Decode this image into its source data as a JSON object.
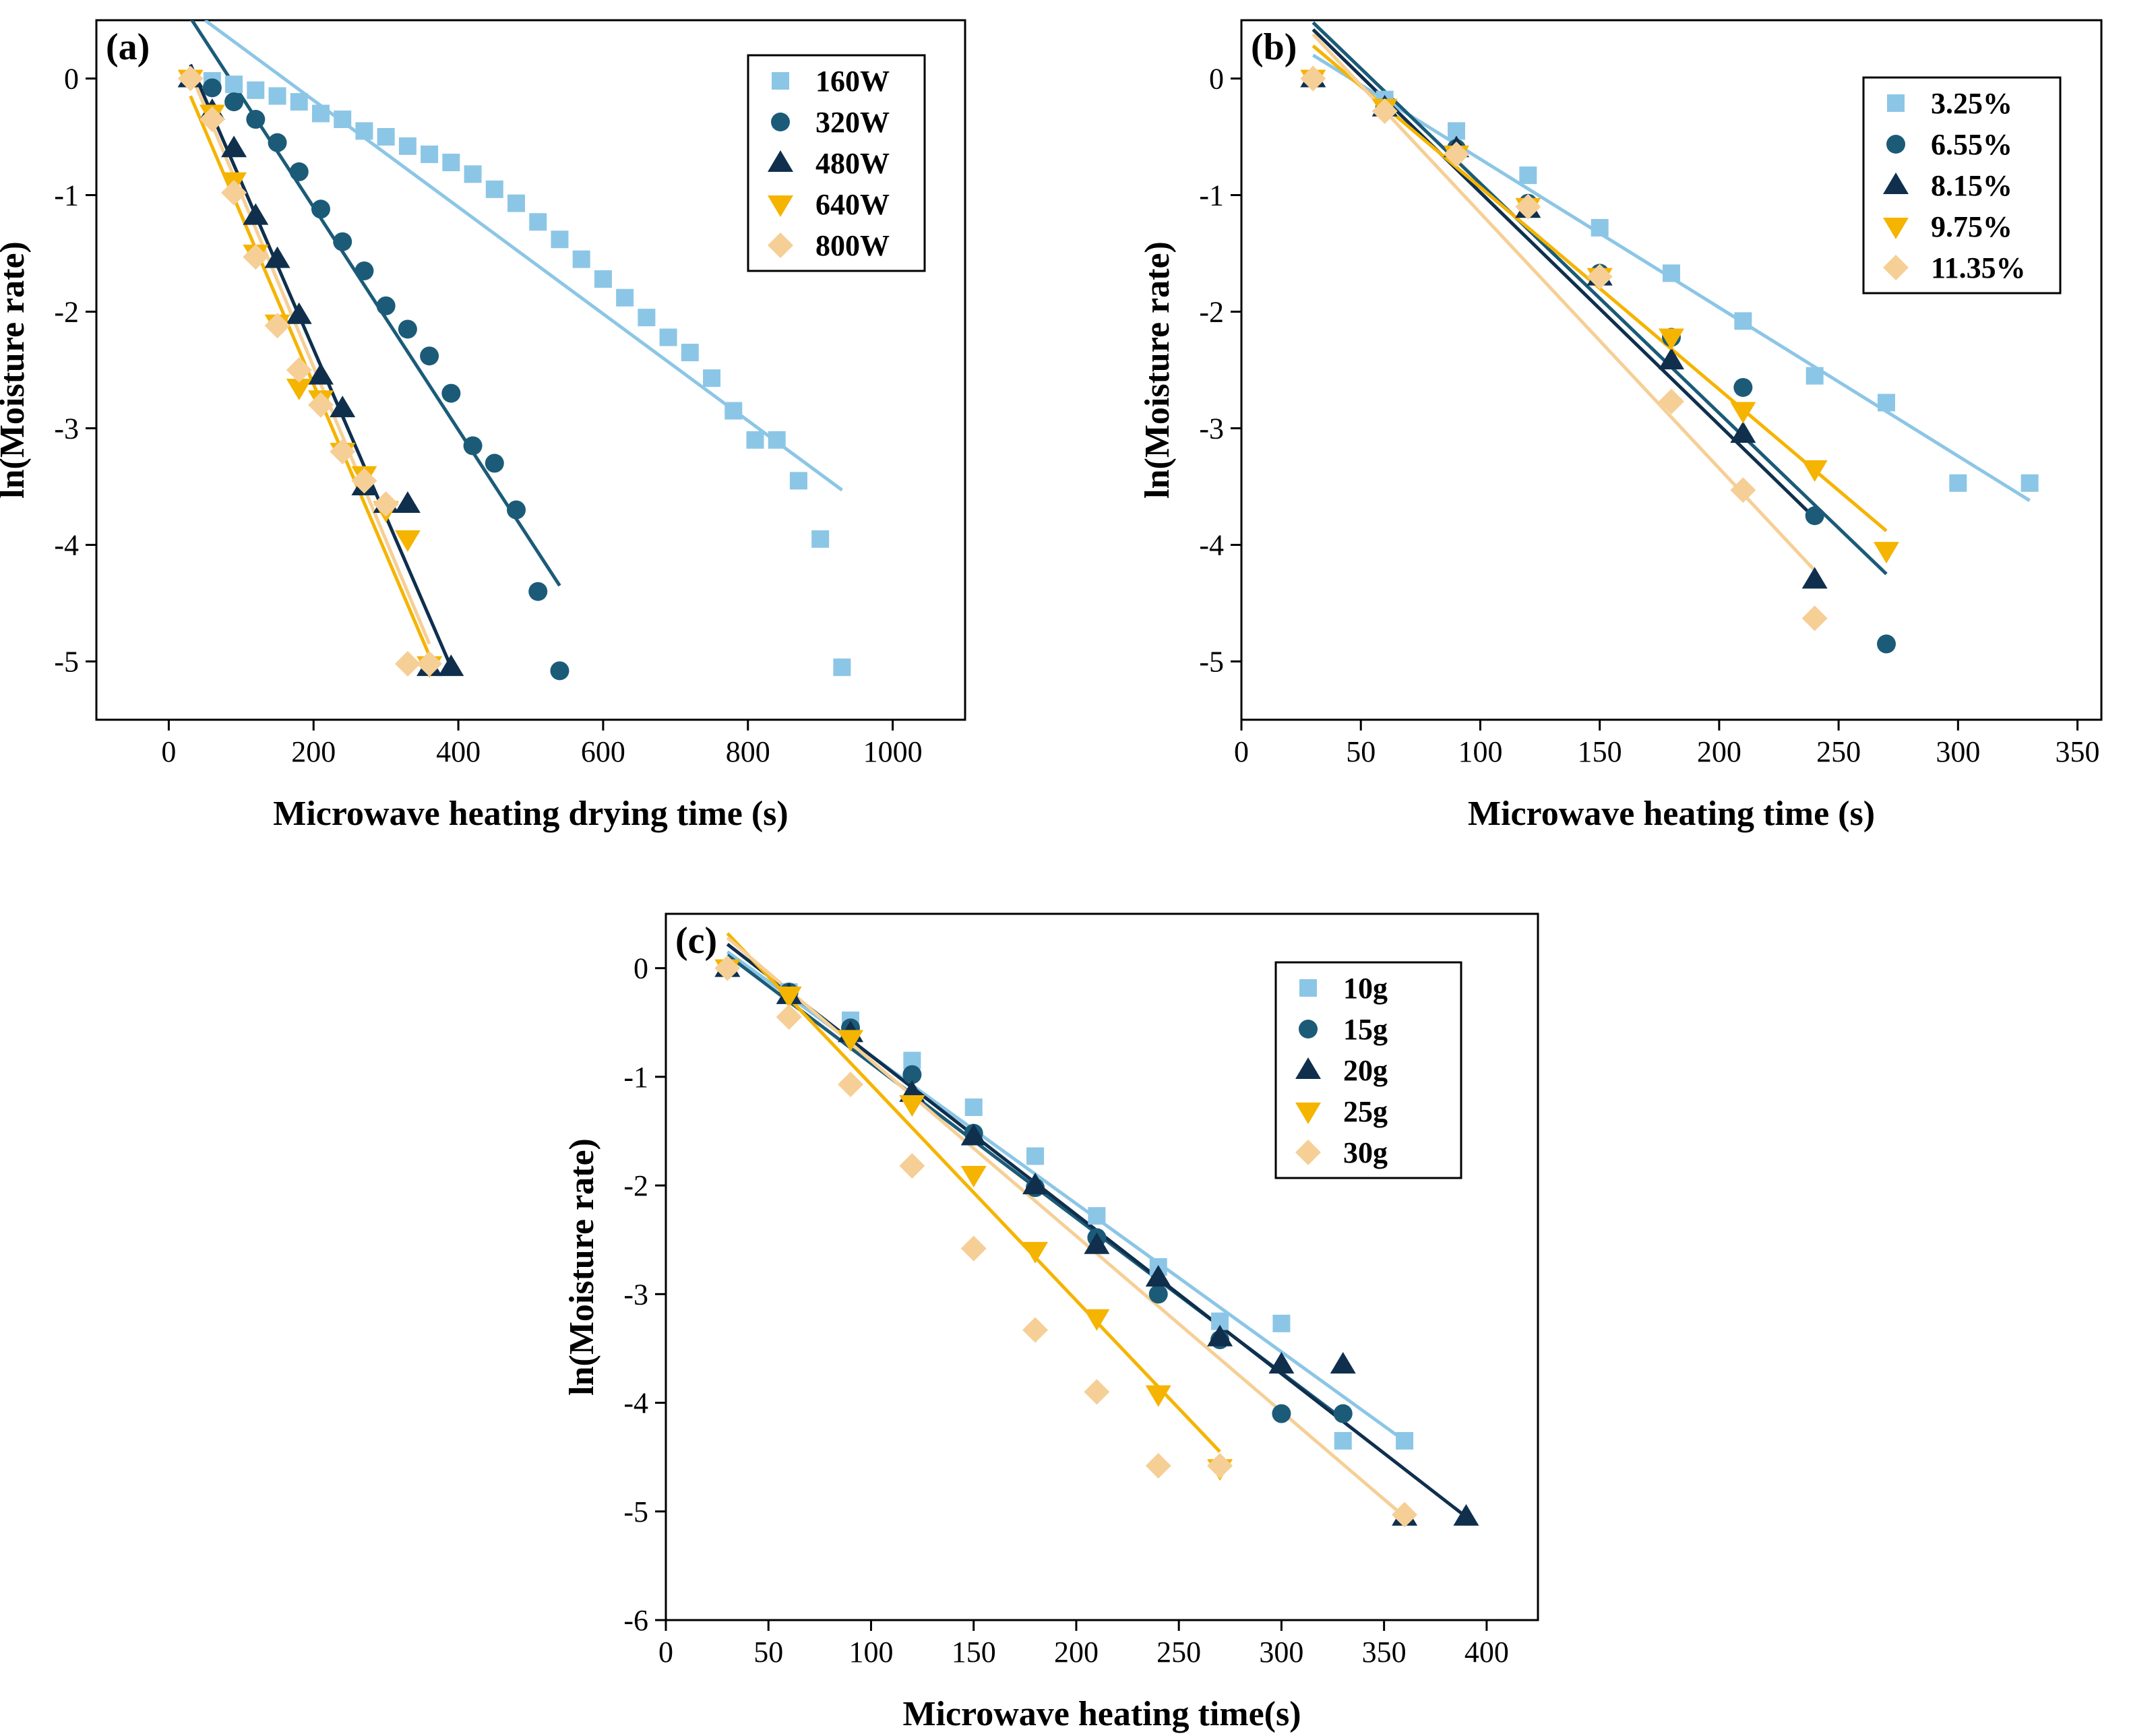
{
  "colors": {
    "s1": "#8cc6e6",
    "s2": "#1b5b78",
    "s3": "#0f2f4d",
    "s4": "#f5b400",
    "s5": "#f6cf96"
  },
  "chart_data": [
    {
      "type": "scatter",
      "panel": "(a)",
      "xlabel": "Microwave heating drying time (s)",
      "ylabel": "ln(Moisture rate)",
      "xlim": [
        -100,
        1100
      ],
      "ylim": [
        -5.5,
        0.5
      ],
      "xticks": [
        0,
        200,
        400,
        600,
        800,
        1000
      ],
      "yticks": [
        0,
        -1,
        -2,
        -3,
        -4,
        -5
      ],
      "xtick_labels": [
        "0",
        "200",
        "400",
        "600",
        "800",
        "1000"
      ],
      "ytick_labels": [
        "0",
        "-1",
        "-2",
        "-3",
        "-4",
        "-5"
      ],
      "series": [
        {
          "name": "160W",
          "marker": "square",
          "color": "#8cc6e6",
          "x": [
            30,
            60,
            90,
            120,
            150,
            180,
            210,
            240,
            270,
            300,
            330,
            360,
            390,
            420,
            450,
            480,
            510,
            540,
            570,
            600,
            630,
            660,
            690,
            720,
            750,
            780,
            810,
            840,
            870,
            900,
            930
          ],
          "y": [
            0,
            -0.02,
            -0.05,
            -0.1,
            -0.15,
            -0.2,
            -0.3,
            -0.35,
            -0.45,
            -0.5,
            -0.58,
            -0.65,
            -0.72,
            -0.82,
            -0.95,
            -1.07,
            -1.23,
            -1.38,
            -1.55,
            -1.72,
            -1.88,
            -2.05,
            -2.22,
            -2.35,
            -2.57,
            -2.85,
            -3.1,
            -3.1,
            -3.45,
            -3.95,
            -5.05
          ],
          "fit": [
            [
              50,
              0.5
            ],
            [
              930,
              -3.53
            ]
          ]
        },
        {
          "name": "320W",
          "marker": "circle",
          "color": "#1b5b78",
          "x": [
            30,
            60,
            90,
            120,
            150,
            180,
            210,
            240,
            270,
            300,
            330,
            360,
            390,
            420,
            450,
            480,
            510,
            540
          ],
          "y": [
            0,
            -0.08,
            -0.2,
            -0.35,
            -0.55,
            -0.8,
            -1.12,
            -1.4,
            -1.65,
            -1.95,
            -2.15,
            -2.38,
            -2.7,
            -3.15,
            -3.3,
            -3.7,
            -4.4,
            -5.08
          ],
          "fit": [
            [
              30,
              0.52
            ],
            [
              540,
              -4.35
            ]
          ]
        },
        {
          "name": "480W",
          "marker": "triangle-up",
          "color": "#0f2f4d",
          "x": [
            30,
            60,
            90,
            120,
            150,
            180,
            210,
            240,
            270,
            300,
            330,
            360,
            390
          ],
          "y": [
            0,
            -0.28,
            -0.6,
            -1.18,
            -1.55,
            -2.03,
            -2.55,
            -2.83,
            -3.5,
            -3.65,
            -3.65,
            -5.05,
            -5.05
          ],
          "fit": [
            [
              30,
              0.12
            ],
            [
              390,
              -5.05
            ]
          ]
        },
        {
          "name": "640W",
          "marker": "triangle-down",
          "color": "#f5b400",
          "x": [
            30,
            60,
            90,
            120,
            150,
            180,
            210,
            240,
            270,
            300,
            330,
            360
          ],
          "y": [
            0,
            -0.3,
            -0.88,
            -1.5,
            -2.1,
            -2.65,
            -2.75,
            -3.2,
            -3.4,
            -3.7,
            -3.95,
            -5.03
          ],
          "fit": [
            [
              30,
              -0.15
            ],
            [
              360,
              -4.95
            ]
          ]
        },
        {
          "name": "800W",
          "marker": "diamond",
          "color": "#f6cf96",
          "x": [
            30,
            60,
            90,
            120,
            150,
            180,
            210,
            240,
            270,
            300,
            330,
            360
          ],
          "y": [
            0,
            -0.35,
            -0.98,
            -1.53,
            -2.12,
            -2.5,
            -2.8,
            -3.2,
            -3.45,
            -3.65,
            -5.02,
            -5.02
          ],
          "fit": [
            [
              30,
              0.05
            ],
            [
              360,
              -4.85
            ]
          ]
        }
      ]
    },
    {
      "type": "scatter",
      "panel": "(b)",
      "xlabel": "Microwave heating time (s)",
      "ylabel": "ln(Moisture rate)",
      "xlim": [
        0,
        360
      ],
      "ylim": [
        -5.5,
        0.5
      ],
      "xticks": [
        0,
        50,
        100,
        150,
        200,
        250,
        300,
        350
      ],
      "yticks": [
        0,
        -1,
        -2,
        -3,
        -4,
        -5
      ],
      "xtick_labels": [
        "0",
        "50",
        "100",
        "150",
        "200",
        "250",
        "300",
        "350"
      ],
      "ytick_labels": [
        "0",
        "-1",
        "-2",
        "-3",
        "-4",
        "-5"
      ],
      "series": [
        {
          "name": "3.25%",
          "marker": "square",
          "color": "#8cc6e6",
          "x": [
            30,
            60,
            90,
            120,
            150,
            180,
            210,
            240,
            270,
            300,
            330
          ],
          "y": [
            0,
            -0.18,
            -0.45,
            -0.83,
            -1.28,
            -1.67,
            -2.08,
            -2.55,
            -2.78,
            -3.47,
            -3.47
          ],
          "fit": [
            [
              30,
              0.2
            ],
            [
              330,
              -3.62
            ]
          ]
        },
        {
          "name": "6.55%",
          "marker": "circle",
          "color": "#1b5b78",
          "x": [
            30,
            60,
            90,
            120,
            150,
            180,
            210,
            240,
            270
          ],
          "y": [
            0,
            -0.25,
            -0.6,
            -1.07,
            -1.67,
            -2.22,
            -2.65,
            -3.75,
            -4.85
          ],
          "fit": [
            [
              30,
              0.48
            ],
            [
              270,
              -4.25
            ]
          ]
        },
        {
          "name": "8.15%",
          "marker": "triangle-up",
          "color": "#0f2f4d",
          "x": [
            30,
            60,
            90,
            120,
            150,
            180,
            210,
            240
          ],
          "y": [
            0,
            -0.25,
            -0.6,
            -1.12,
            -1.7,
            -2.42,
            -3.05,
            -4.3
          ],
          "fit": [
            [
              30,
              0.42
            ],
            [
              240,
              -3.77
            ]
          ]
        },
        {
          "name": "9.75%",
          "marker": "triangle-down",
          "color": "#f5b400",
          "x": [
            30,
            60,
            90,
            120,
            150,
            180,
            210,
            240,
            270
          ],
          "y": [
            0,
            -0.25,
            -0.65,
            -1.1,
            -1.7,
            -2.22,
            -2.85,
            -3.35,
            -4.05
          ],
          "fit": [
            [
              30,
              0.28
            ],
            [
              270,
              -3.88
            ]
          ]
        },
        {
          "name": "11.35%",
          "marker": "diamond",
          "color": "#f6cf96",
          "x": [
            30,
            60,
            90,
            120,
            150,
            180,
            210,
            240
          ],
          "y": [
            0,
            -0.28,
            -0.65,
            -1.1,
            -1.7,
            -2.77,
            -3.53,
            -4.63
          ],
          "fit": [
            [
              30,
              0.38
            ],
            [
              240,
              -4.22
            ]
          ]
        }
      ]
    },
    {
      "type": "scatter",
      "panel": "(c)",
      "xlabel": "Microwave heating time(s)",
      "ylabel": "ln(Moisture rate)",
      "xlim": [
        0,
        425
      ],
      "ylim": [
        -6,
        0.5
      ],
      "xticks": [
        0,
        50,
        100,
        150,
        200,
        250,
        300,
        350,
        400
      ],
      "yticks": [
        0,
        -1,
        -2,
        -3,
        -4,
        -5,
        -6
      ],
      "xtick_labels": [
        "0",
        "50",
        "100",
        "150",
        "200",
        "250",
        "300",
        "350",
        "400"
      ],
      "ytick_labels": [
        "0",
        "-1",
        "-2",
        "-3",
        "-4",
        "-5",
        "-6"
      ],
      "series": [
        {
          "name": "10g",
          "marker": "square",
          "color": "#8cc6e6",
          "x": [
            30,
            60,
            90,
            120,
            150,
            180,
            210,
            240,
            270,
            300,
            330,
            360
          ],
          "y": [
            0,
            -0.22,
            -0.48,
            -0.85,
            -1.28,
            -1.73,
            -2.28,
            -2.75,
            -3.25,
            -3.27,
            -4.35,
            -4.35
          ],
          "fit": [
            [
              30,
              0.15
            ],
            [
              360,
              -4.35
            ]
          ]
        },
        {
          "name": "15g",
          "marker": "circle",
          "color": "#1b5b78",
          "x": [
            30,
            60,
            90,
            120,
            150,
            180,
            210,
            240,
            270,
            300,
            330
          ],
          "y": [
            0,
            -0.22,
            -0.55,
            -0.98,
            -1.52,
            -2.02,
            -2.48,
            -3.0,
            -3.42,
            -4.1,
            -4.1
          ],
          "fit": [
            [
              30,
              0.12
            ],
            [
              330,
              -4.15
            ]
          ]
        },
        {
          "name": "20g",
          "marker": "triangle-up",
          "color": "#0f2f4d",
          "x": [
            30,
            60,
            90,
            120,
            150,
            180,
            210,
            240,
            270,
            300,
            330,
            360,
            390
          ],
          "y": [
            0,
            -0.25,
            -0.6,
            -1.15,
            -1.55,
            -2.0,
            -2.55,
            -2.85,
            -3.4,
            -3.65,
            -3.65,
            -5.05,
            -5.05
          ],
          "fit": [
            [
              30,
              0.22
            ],
            [
              390,
              -5.05
            ]
          ]
        },
        {
          "name": "25g",
          "marker": "triangle-down",
          "color": "#f5b400",
          "x": [
            30,
            60,
            90,
            120,
            150,
            180,
            210,
            240,
            270
          ],
          "y": [
            0,
            -0.25,
            -0.65,
            -1.25,
            -1.9,
            -2.6,
            -3.22,
            -3.92,
            -4.6
          ],
          "fit": [
            [
              30,
              0.32
            ],
            [
              270,
              -4.45
            ]
          ]
        },
        {
          "name": "30g",
          "marker": "diamond",
          "color": "#f6cf96",
          "x": [
            30,
            60,
            90,
            120,
            150,
            180,
            210,
            240,
            270,
            360
          ],
          "y": [
            0,
            -0.45,
            -1.07,
            -1.82,
            -2.58,
            -3.33,
            -3.9,
            -4.58,
            -4.58,
            -5.03
          ],
          "fit": [
            [
              30,
              0.28
            ],
            [
              360,
              -5.05
            ]
          ]
        }
      ]
    }
  ]
}
